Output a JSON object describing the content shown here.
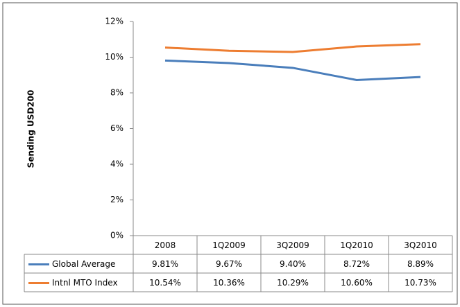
{
  "chart_data": {
    "type": "line",
    "y_label": "Sending USD200",
    "categories": [
      "2008",
      "1Q2009",
      "3Q2009",
      "1Q2010",
      "3Q2010"
    ],
    "series": [
      {
        "name": "Global Average",
        "color": "#4a7ebb",
        "values": [
          9.81,
          9.67,
          9.4,
          8.72,
          8.89
        ],
        "value_labels": [
          "9.81%",
          "9.67%",
          "9.40%",
          "8.72%",
          "8.89%"
        ]
      },
      {
        "name": "Intnl MTO Index",
        "color": "#ed7d31",
        "values": [
          10.54,
          10.36,
          10.29,
          10.6,
          10.73
        ],
        "value_labels": [
          "10.54%",
          "10.36%",
          "10.29%",
          "10.60%",
          "10.73%"
        ]
      }
    ],
    "ylim": [
      0,
      12
    ],
    "yticks": [
      {
        "value": 0,
        "label": "0%"
      },
      {
        "value": 2,
        "label": "2%"
      },
      {
        "value": 4,
        "label": "4%"
      },
      {
        "value": 6,
        "label": "6%"
      },
      {
        "value": 8,
        "label": "8%"
      },
      {
        "value": 10,
        "label": "10%"
      },
      {
        "value": 12,
        "label": "12%"
      }
    ],
    "grid": false
  }
}
